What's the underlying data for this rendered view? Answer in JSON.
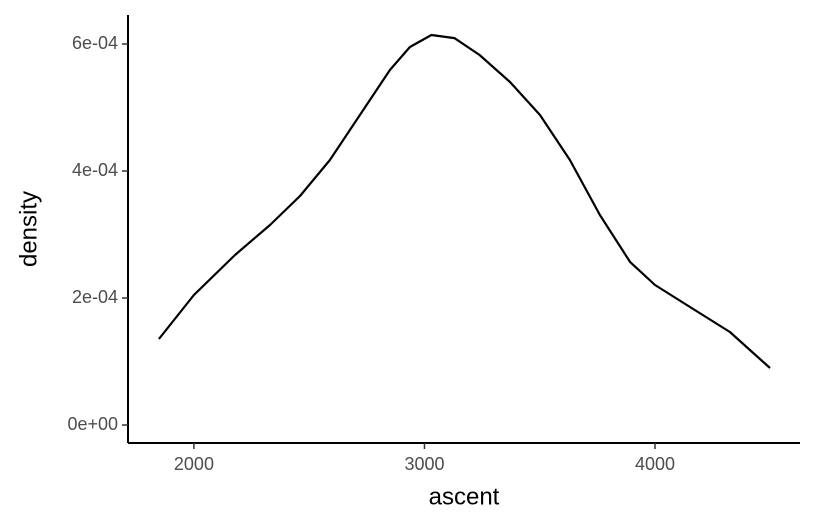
{
  "chart_data": {
    "type": "line",
    "x_label": "ascent",
    "y_label": "density",
    "x": [
      1848,
      2000,
      2178,
      2330,
      2460,
      2590,
      2720,
      2850,
      2937,
      3030,
      3130,
      3239,
      3371,
      3501,
      3631,
      3761,
      3892,
      4000,
      4152,
      4325,
      4499
    ],
    "series": [
      {
        "color": "#000000",
        "values": [
          0.0001354,
          0.0002047,
          0.0002677,
          0.000315,
          0.0003606,
          0.0004173,
          0.0004882,
          0.0005591,
          0.0005953,
          0.0006142,
          0.0006094,
          0.0005827,
          0.0005402,
          0.0004882,
          0.0004173,
          0.0003307,
          0.0002567,
          0.0002205,
          0.0001858,
          0.0001465,
          8.98e-05
        ]
      }
    ],
    "xlim": [
      1714,
      4629
    ],
    "xticks": [
      2000,
      3000,
      4000
    ],
    "ylim": [
      -2.83e-05,
      0.0006457
    ],
    "yticks": [
      {
        "value": 0,
        "label": "0e+00"
      },
      {
        "value": 0.0002,
        "label": "2e-04"
      },
      {
        "value": 0.0004,
        "label": "4e-04"
      },
      {
        "value": 0.0006,
        "label": "6e-04"
      }
    ],
    "grid": false
  }
}
